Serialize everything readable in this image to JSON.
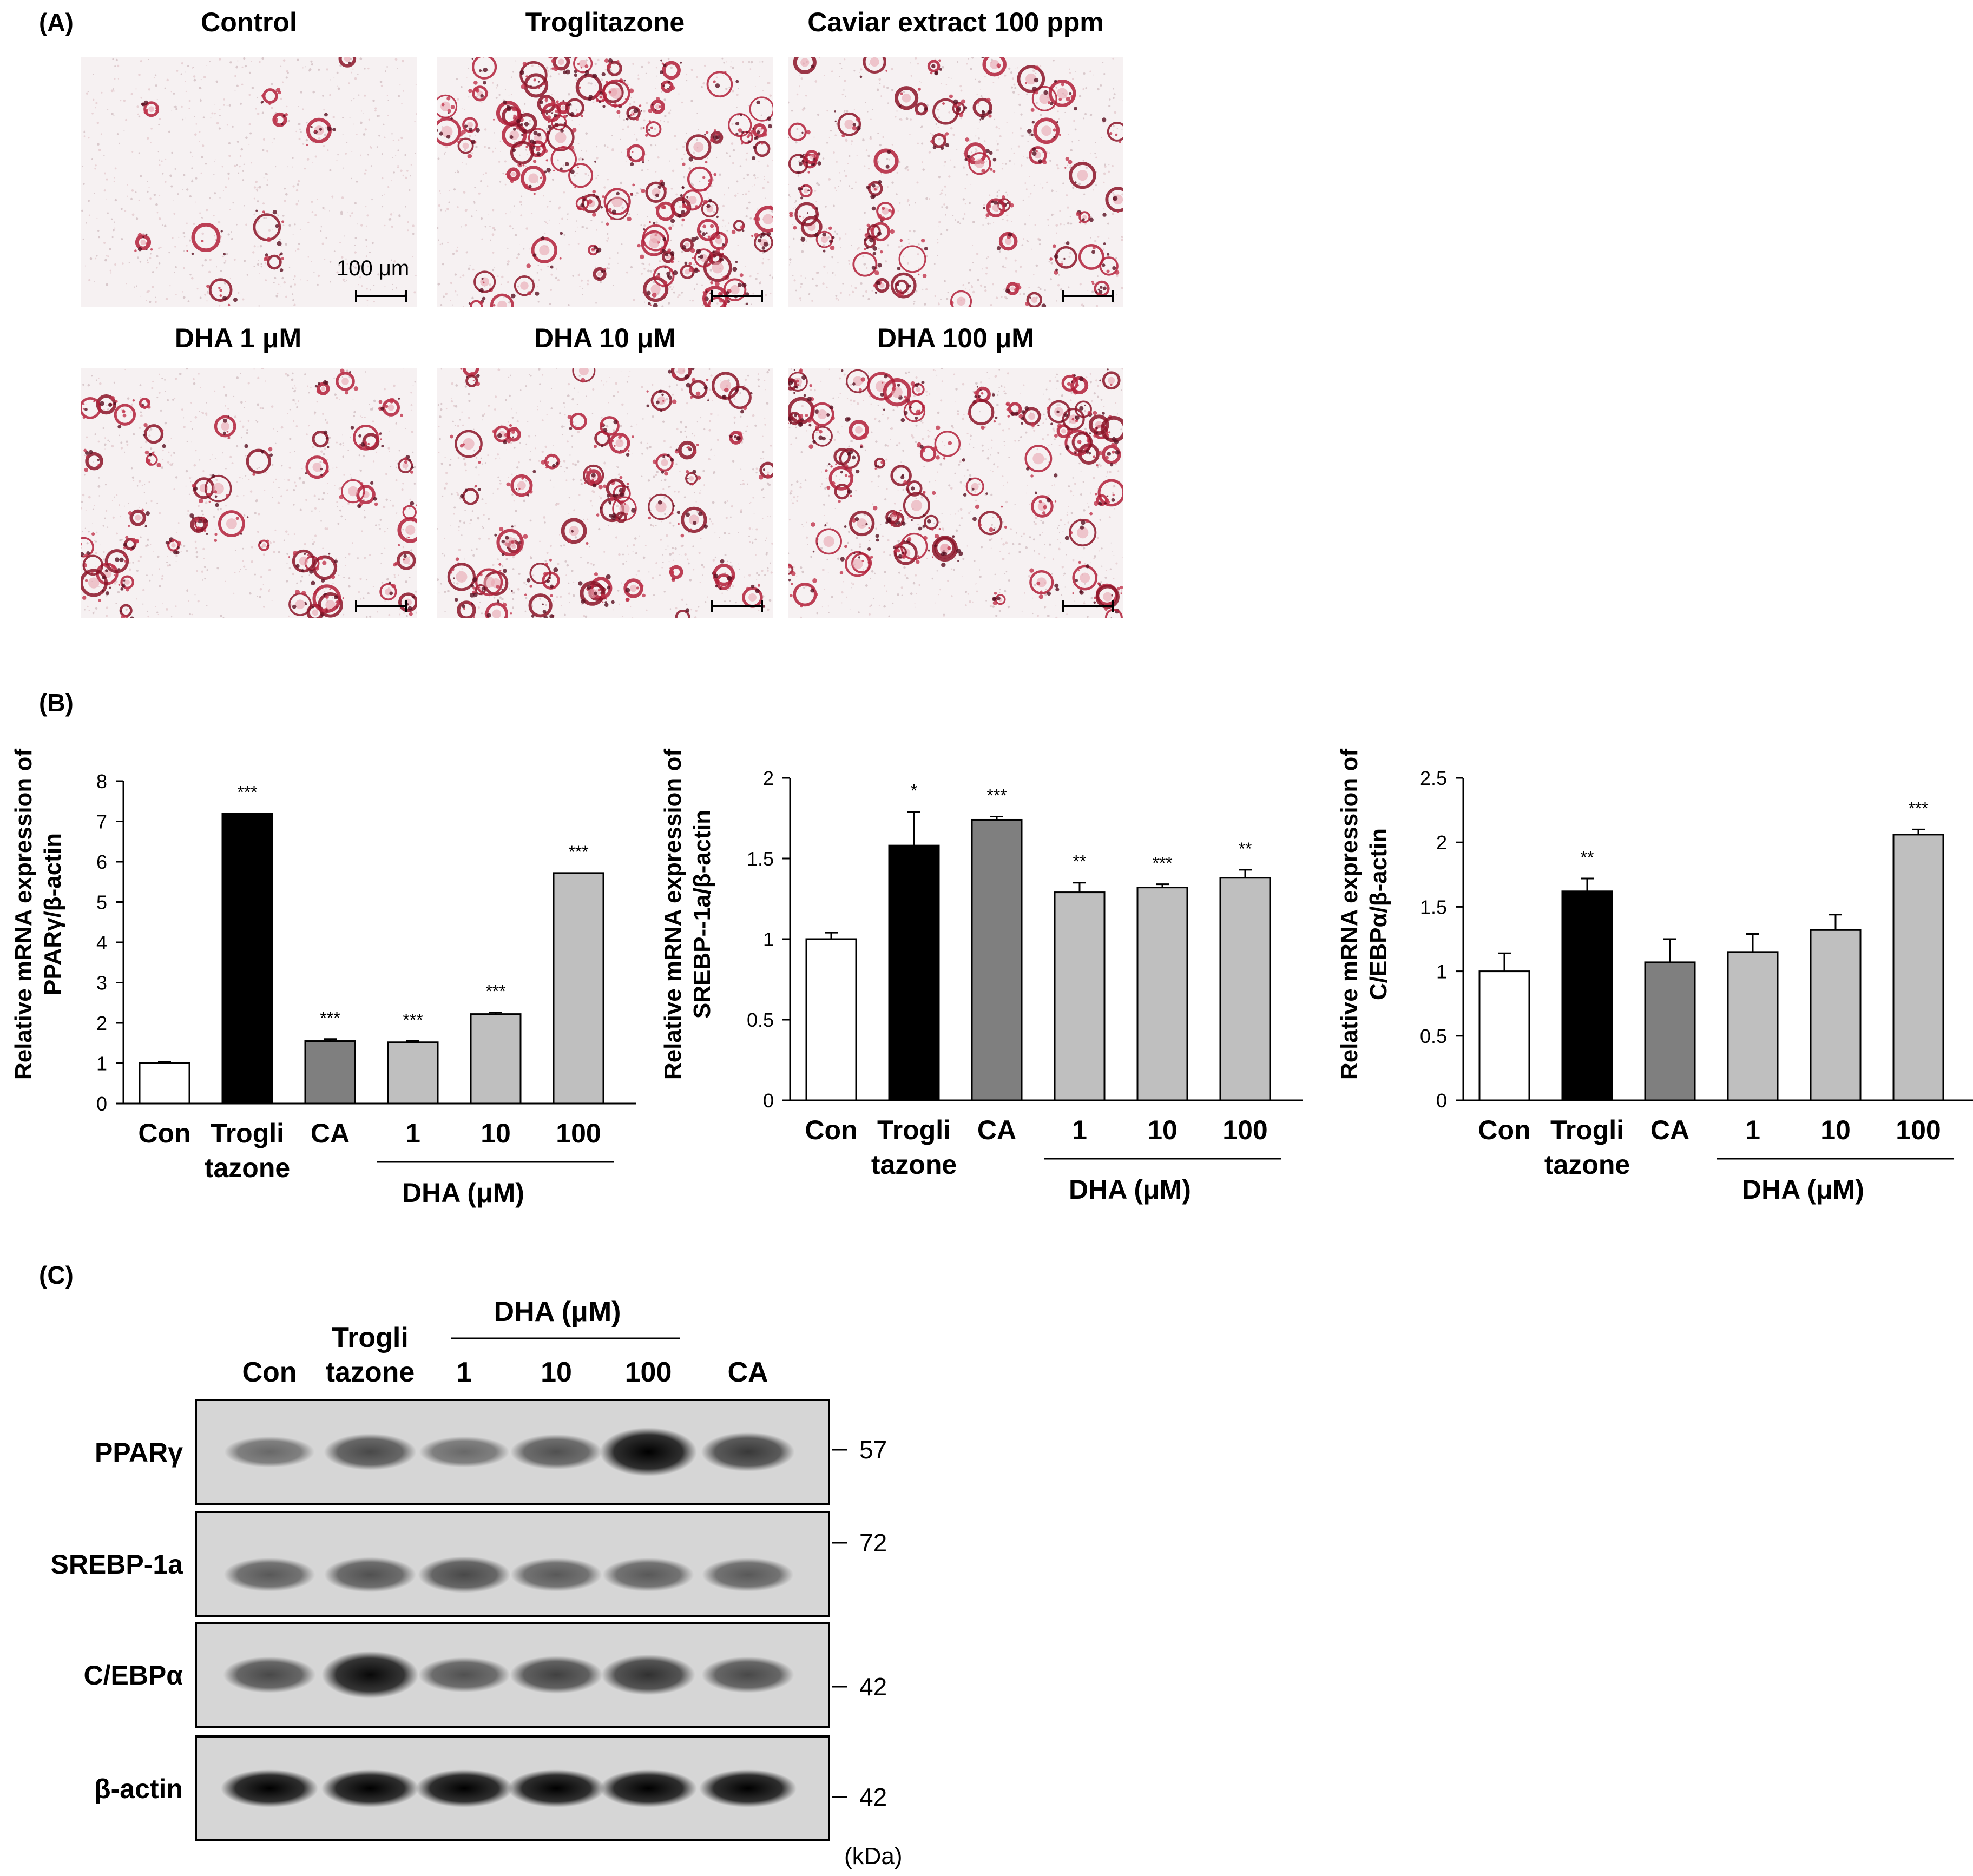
{
  "panels": {
    "a": "(A)",
    "b": "(B)",
    "c": "(C)"
  },
  "microscopy": {
    "images": [
      {
        "title": "Control",
        "density": 0.12,
        "scale_label": "100 μm"
      },
      {
        "title": "Troglitazone",
        "density": 0.95,
        "scale_label": ""
      },
      {
        "title": "Caviar extract 100 ppm",
        "density": 0.6,
        "scale_label": ""
      },
      {
        "title": "DHA 1 μM",
        "density": 0.55,
        "scale_label": ""
      },
      {
        "title": "DHA 10 μM",
        "density": 0.62,
        "scale_label": ""
      },
      {
        "title": "DHA 100 μM",
        "density": 0.8,
        "scale_label": ""
      }
    ]
  },
  "chart_data": [
    {
      "type": "bar",
      "ylabel_lines": [
        "Relative mRNA expression of",
        "PPARγ/β-actin"
      ],
      "ylim": [
        0,
        8
      ],
      "yticks": [
        "0",
        "1",
        "2",
        "3",
        "4",
        "5",
        "6",
        "7",
        "8"
      ],
      "categories": [
        [
          "Con"
        ],
        [
          "Trogli",
          "tazone"
        ],
        [
          "CA"
        ],
        [
          "1"
        ],
        [
          "10"
        ],
        [
          "100"
        ]
      ],
      "group_label": "DHA (μM)",
      "values": [
        1.0,
        7.2,
        1.55,
        1.52,
        2.22,
        5.72
      ],
      "errors": [
        0.04,
        0.0,
        0.05,
        0.03,
        0.04,
        0.0
      ],
      "significance": [
        "",
        "***",
        "***",
        "***",
        "***",
        "***"
      ],
      "colors": [
        "#ffffff",
        "#000000",
        "#7f7f7f",
        "#bfbfbf",
        "#bfbfbf",
        "#bfbfbf"
      ]
    },
    {
      "type": "bar",
      "ylabel_lines": [
        "Relative mRNA expression of",
        "SREBP--1a/β-actin"
      ],
      "ylim": [
        0,
        2
      ],
      "yticks": [
        "0",
        "0.5",
        "1",
        "1.5",
        "2"
      ],
      "categories": [
        [
          "Con"
        ],
        [
          "Trogli",
          "tazone"
        ],
        [
          "CA"
        ],
        [
          "1"
        ],
        [
          "10"
        ],
        [
          "100"
        ]
      ],
      "group_label": "DHA (μM)",
      "values": [
        1.0,
        1.58,
        1.74,
        1.29,
        1.32,
        1.38
      ],
      "errors": [
        0.04,
        0.21,
        0.02,
        0.06,
        0.02,
        0.05
      ],
      "significance": [
        "",
        "*",
        "***",
        "**",
        "***",
        "**"
      ],
      "colors": [
        "#ffffff",
        "#000000",
        "#7f7f7f",
        "#bfbfbf",
        "#bfbfbf",
        "#bfbfbf"
      ]
    },
    {
      "type": "bar",
      "ylabel_lines": [
        "Relative mRNA expression of",
        "C/EBPα/β-actin"
      ],
      "ylim": [
        0,
        2.5
      ],
      "yticks": [
        "0",
        "0.5",
        "1",
        "1.5",
        "2",
        "2.5"
      ],
      "categories": [
        [
          "Con"
        ],
        [
          "Trogli",
          "tazone"
        ],
        [
          "CA"
        ],
        [
          "1"
        ],
        [
          "10"
        ],
        [
          "100"
        ]
      ],
      "group_label": "DHA (μM)",
      "values": [
        1.0,
        1.62,
        1.07,
        1.15,
        1.32,
        2.06
      ],
      "errors": [
        0.14,
        0.1,
        0.18,
        0.14,
        0.12,
        0.04
      ],
      "significance": [
        "",
        "**",
        "",
        "",
        "",
        "***"
      ],
      "colors": [
        "#ffffff",
        "#000000",
        "#7f7f7f",
        "#bfbfbf",
        "#bfbfbf",
        "#bfbfbf"
      ]
    }
  ],
  "western_blot": {
    "group_label": "DHA (μM)",
    "lanes": [
      [
        "Con"
      ],
      [
        "Trogli",
        "tazone"
      ],
      [
        "1"
      ],
      [
        "10"
      ],
      [
        "100"
      ],
      [
        "CA"
      ]
    ],
    "rows": [
      {
        "label": "PPARγ",
        "marker": "57",
        "intensities": [
          0.35,
          0.55,
          0.35,
          0.5,
          1.0,
          0.65
        ]
      },
      {
        "label": "SREBP-1a",
        "marker": "72",
        "intensities": [
          0.45,
          0.5,
          0.55,
          0.45,
          0.45,
          0.45
        ]
      },
      {
        "label": "C/EBPα",
        "marker": "42",
        "intensities": [
          0.55,
          0.95,
          0.5,
          0.6,
          0.7,
          0.55
        ]
      },
      {
        "label": "β-actin",
        "marker": "42",
        "intensities": [
          1.0,
          1.0,
          1.0,
          1.0,
          1.0,
          1.0
        ]
      }
    ],
    "unit": "(kDa)"
  }
}
